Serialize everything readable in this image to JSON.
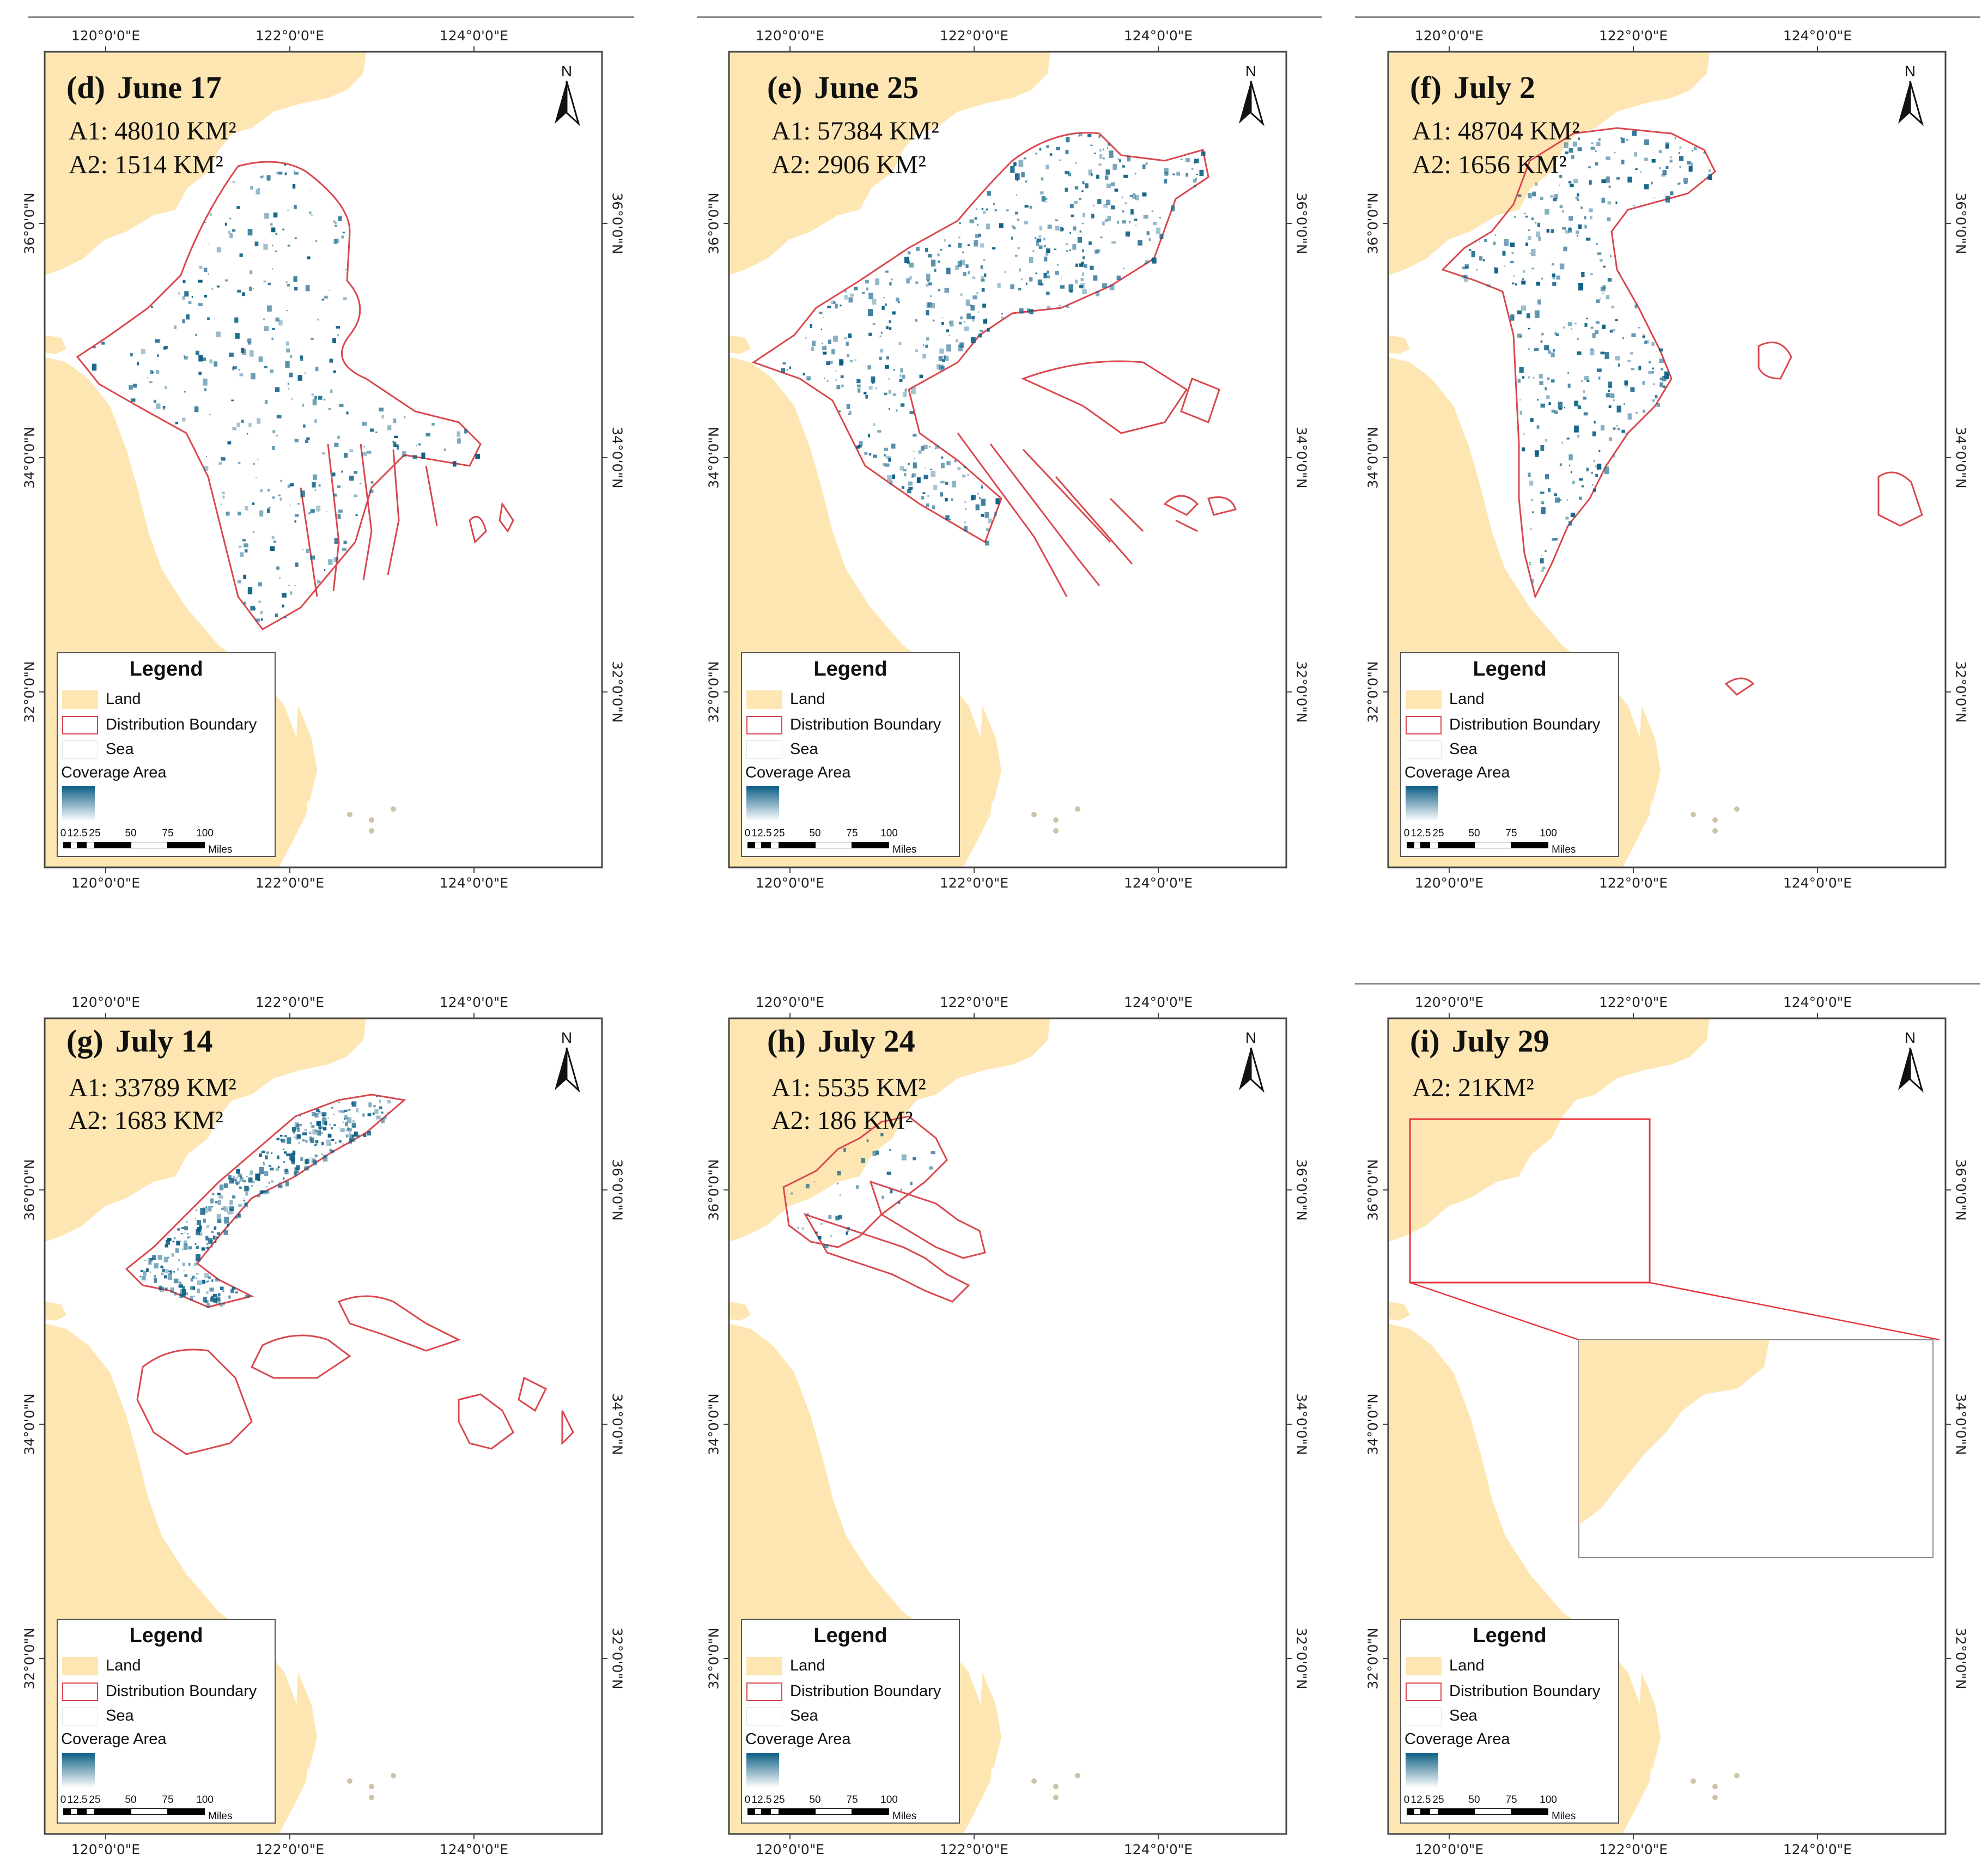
{
  "colors": {
    "land": "#fde6b2",
    "boundary": "#d9474d",
    "coverage": "#0c5e84",
    "frame": "#444444",
    "zoom_box": "#e8333a"
  },
  "legend": {
    "title": "Legend",
    "land": "Land",
    "boundary": "Distribution Boundary",
    "sea": "Sea",
    "coverage": "Coverage Area",
    "scale_labels": [
      "0",
      "12.5",
      "25",
      "50",
      "75",
      "100"
    ],
    "scale_unit": "Miles"
  },
  "axes": {
    "lon_labels": [
      "120°0'0\"E",
      "122°0'0\"E",
      "124°0'0\"E"
    ],
    "lat_labels": [
      "36°0'0\"N",
      "34°0'0\"N",
      "32°0'0\"N"
    ]
  },
  "north_label": "N",
  "panels": [
    {
      "letter": "(d)",
      "date": "June 17",
      "a1": "A1: 48010 KM²",
      "a2": "A2: 1514 KM²",
      "a1_km2": 48010,
      "a2_km2": 1514
    },
    {
      "letter": "(e)",
      "date": "June 25",
      "a1": "A1: 57384 KM²",
      "a2": "A2: 2906 KM²",
      "a1_km2": 57384,
      "a2_km2": 2906
    },
    {
      "letter": "(f)",
      "date": "July 2",
      "a1": "A1: 48704 KM²",
      "a2": "A2: 1656 KM²",
      "a1_km2": 48704,
      "a2_km2": 1656
    },
    {
      "letter": "(g)",
      "date": "July 14",
      "a1": "A1: 33789 KM²",
      "a2": "A2: 1683 KM²",
      "a1_km2": 33789,
      "a2_km2": 1683
    },
    {
      "letter": "(h)",
      "date": "July 24",
      "a1": "A1: 5535 KM²",
      "a2": "A2: 186 KM²",
      "a1_km2": 5535,
      "a2_km2": 186
    },
    {
      "letter": "(i)",
      "date": "July 29",
      "a1": "A2: 21KM²",
      "a2": "",
      "a1_km2": null,
      "a2_km2": 21
    }
  ]
}
